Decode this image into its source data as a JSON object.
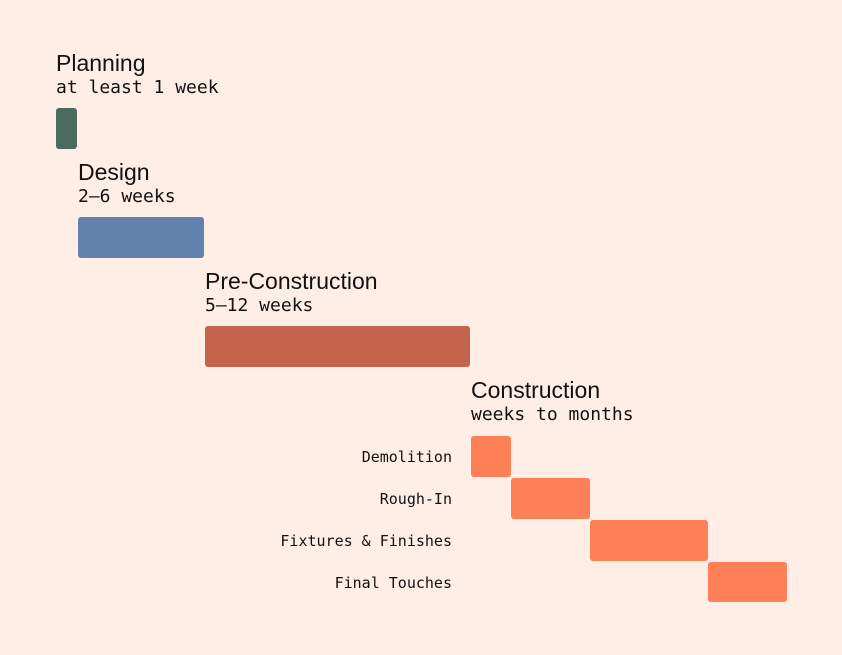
{
  "phases": [
    {
      "title": "Planning",
      "duration": "at least 1 week",
      "color": "#4A6B5E"
    },
    {
      "title": "Design",
      "duration": "2–6 weeks",
      "color": "#6082AD"
    },
    {
      "title": "Pre-Construction",
      "duration": "5–12 weeks",
      "color": "#C2654C"
    },
    {
      "title": "Construction",
      "duration": "weeks to months",
      "color": "#FF7F57"
    }
  ],
  "construction_steps": [
    {
      "label": "Demolition"
    },
    {
      "label": "Rough-In"
    },
    {
      "label": "Fixtures & Finishes"
    },
    {
      "label": "Final Touches"
    }
  ]
}
